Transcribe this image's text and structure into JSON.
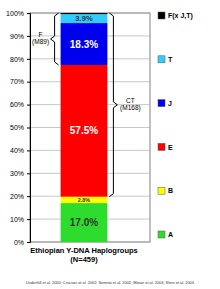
{
  "chart_data": {
    "type": "bar",
    "stacked": true,
    "data_labels": true,
    "legend": "right",
    "grid": true,
    "categories": [
      "Ethiopian Y-DNA Haplogroups (N=459)"
    ],
    "series": [
      {
        "name": "A",
        "color": "#2edc2e",
        "values": [
          17.0
        ],
        "value_labels": [
          "17.0%"
        ]
      },
      {
        "name": "B",
        "color": "#ffff00",
        "values": [
          2.8
        ],
        "value_labels": [
          "2.8%"
        ]
      },
      {
        "name": "E",
        "color": "#ff0000",
        "values": [
          57.5
        ],
        "value_labels": [
          "57.5%"
        ]
      },
      {
        "name": "J",
        "color": "#0000ee",
        "values": [
          18.3
        ],
        "value_labels": [
          "18.3%"
        ]
      },
      {
        "name": "T",
        "color": "#33ccff",
        "values": [
          3.9
        ],
        "value_labels": [
          "3.9%"
        ]
      },
      {
        "name": "F(x J,T)",
        "color": "#000000",
        "values": [
          0.5
        ],
        "value_labels": [
          null
        ]
      }
    ],
    "ylim": [
      0,
      100
    ],
    "yticks": [
      {
        "value": 0,
        "label": "0%"
      },
      {
        "value": 10,
        "label": "10%"
      },
      {
        "value": 20,
        "label": "20%"
      },
      {
        "value": 30,
        "label": "30%"
      },
      {
        "value": 40,
        "label": "40%"
      },
      {
        "value": 50,
        "label": "50%"
      },
      {
        "value": 60,
        "label": "60%"
      },
      {
        "value": 70,
        "label": "70%"
      },
      {
        "value": 80,
        "label": "80%"
      },
      {
        "value": 90,
        "label": "90%"
      },
      {
        "value": 100,
        "label": "100%"
      }
    ],
    "annotations": [
      {
        "text": "F (M89)",
        "series": [
          "J",
          "T",
          "F(x J,T)"
        ]
      },
      {
        "text": "CT (M168)",
        "series": [
          "E",
          "J",
          "T",
          "F(x J,T)"
        ]
      }
    ],
    "source": "Underhill et al. 2000; Cruciani et al. 2002; Semino et al. 2002; Moran et al. 2004; Shen et al. 2004"
  }
}
